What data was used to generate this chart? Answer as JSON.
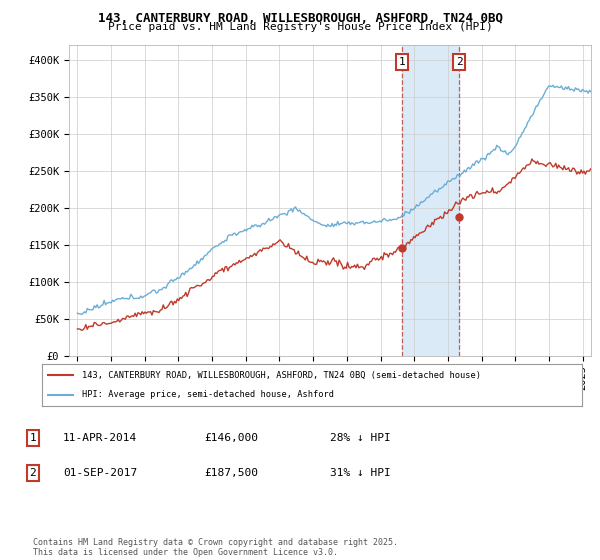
{
  "title_line1": "143, CANTERBURY ROAD, WILLESBOROUGH, ASHFORD, TN24 0BQ",
  "title_line2": "Price paid vs. HM Land Registry's House Price Index (HPI)",
  "ylim": [
    0,
    420000
  ],
  "yticks": [
    0,
    50000,
    100000,
    150000,
    200000,
    250000,
    300000,
    350000,
    400000
  ],
  "ytick_labels": [
    "£0",
    "£50K",
    "£100K",
    "£150K",
    "£200K",
    "£250K",
    "£300K",
    "£350K",
    "£400K"
  ],
  "hpi_color": "#6baed6",
  "price_color": "#c0392b",
  "marker1_year": 2014.28,
  "marker2_year": 2017.67,
  "marker1_price": 146000,
  "marker2_price": 187500,
  "legend_line1": "143, CANTERBURY ROAD, WILLESBOROUGH, ASHFORD, TN24 0BQ (semi-detached house)",
  "legend_line2": "HPI: Average price, semi-detached house, Ashford",
  "table_row1": [
    "1",
    "11-APR-2014",
    "£146,000",
    "28% ↓ HPI"
  ],
  "table_row2": [
    "2",
    "01-SEP-2017",
    "£187,500",
    "31% ↓ HPI"
  ],
  "footer": "Contains HM Land Registry data © Crown copyright and database right 2025.\nThis data is licensed under the Open Government Licence v3.0.",
  "background_color": "#ffffff",
  "grid_color": "#cccccc",
  "highlight_fill": "#dbeaf7",
  "xlim_start": 1995.0,
  "xlim_end": 2025.5
}
